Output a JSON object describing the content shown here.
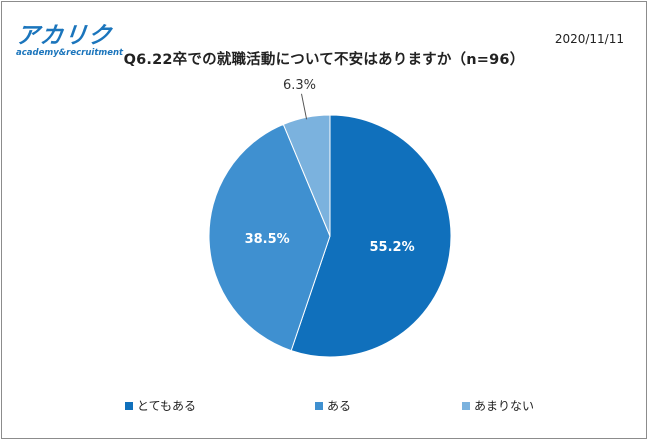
{
  "logo": {
    "main": "アカリク",
    "sub": "academy&recruitment"
  },
  "date": "2020/11/11",
  "title": "Q6.22卒での就職活動について不安はありますか（n=96）",
  "chart_data": {
    "type": "pie",
    "title": "Q6.22卒での就職活動について不安はありますか（n=96）",
    "categories": [
      "とてもある",
      "ある",
      "あまりない"
    ],
    "values": [
      55.2,
      38.5,
      6.3
    ],
    "labels": [
      "55.2%",
      "38.5%",
      "6.3%"
    ],
    "colors": [
      "#1070bc",
      "#3f90d0",
      "#7bb2de"
    ],
    "legend_position": "bottom",
    "start_angle_deg": 0,
    "direction": "clockwise"
  }
}
